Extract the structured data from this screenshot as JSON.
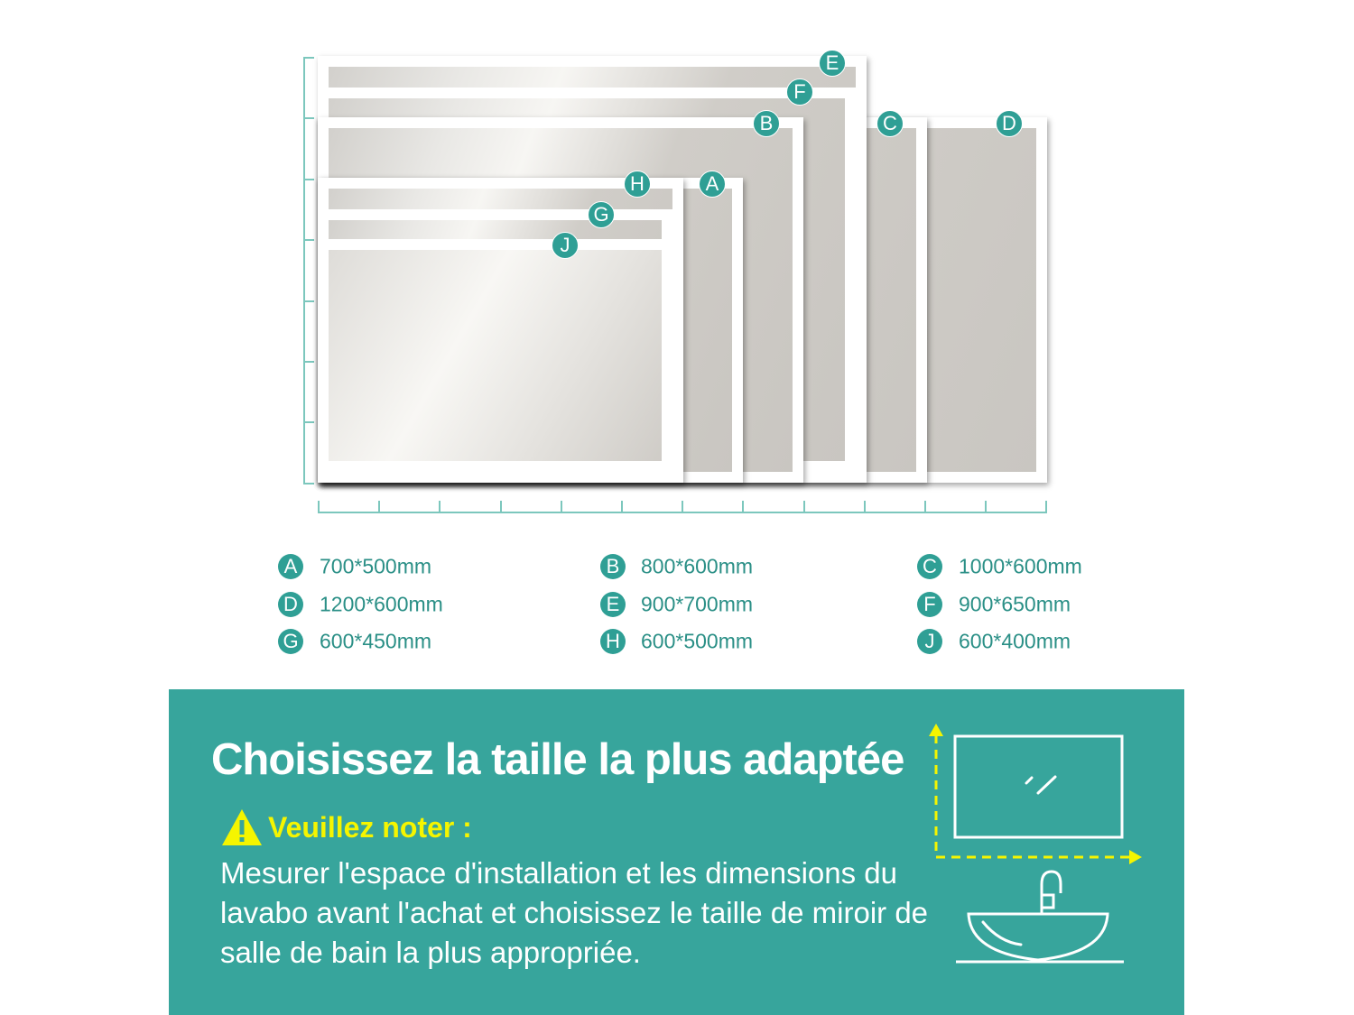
{
  "mirrors": [
    {
      "label": "A",
      "size": "700*500mm"
    },
    {
      "label": "B",
      "size": "800*600mm"
    },
    {
      "label": "C",
      "size": "1000*600mm"
    },
    {
      "label": "D",
      "size": "1200*600mm"
    },
    {
      "label": "E",
      "size": "900*700mm"
    },
    {
      "label": "F",
      "size": "900*650mm"
    },
    {
      "label": "G",
      "size": "600*450mm"
    },
    {
      "label": "H",
      "size": "600*500mm"
    },
    {
      "label": "J",
      "size": "600*400mm"
    }
  ],
  "panel": {
    "title": "Choisissez la taille la plus adaptée",
    "warning_label": "Veuillez noter :",
    "body": "Mesurer l'espace d'installation et les dimensions du lavabo avant l'achat et choisissez le taille de miroir de salle de bain la plus appropriée."
  },
  "colors": {
    "teal": "#37a59c",
    "badge": "#2f9f95",
    "warning": "#f5f500"
  },
  "icons": [
    "warning-triangle-icon",
    "mirror-icon",
    "sink-icon",
    "dimension-arrows-icon"
  ]
}
